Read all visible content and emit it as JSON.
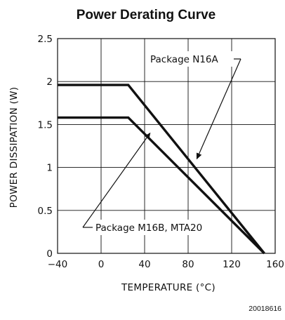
{
  "chart_data": {
    "type": "line",
    "title": "Power Derating Curve",
    "xlabel": "TEMPERATURE (°C)",
    "ylabel": "POWER DISSIPATION (W)",
    "xlim": [
      -40,
      160
    ],
    "ylim": [
      0,
      2.5
    ],
    "x_ticks": [
      "-40",
      "0",
      "40",
      "80",
      "120",
      "160"
    ],
    "y_ticks": [
      "0",
      "0.5",
      "1",
      "1.5",
      "2",
      "2.5"
    ],
    "grid": true,
    "series": [
      {
        "name": "Package N16A",
        "x": [
          -40,
          25,
          150
        ],
        "y": [
          1.96,
          1.96,
          0
        ]
      },
      {
        "name": "Package M16B, MTA20",
        "x": [
          -40,
          25,
          150
        ],
        "y": [
          1.58,
          1.58,
          0
        ]
      }
    ],
    "annotations": [
      {
        "text": "Package N16A",
        "points_to_series": 0,
        "arrow_target": {
          "x": 88,
          "y": 1.1
        }
      },
      {
        "text": "Package M16B, MTA20",
        "points_to_series": 1,
        "arrow_target": {
          "x": 45,
          "y": 1.4
        }
      }
    ],
    "figure_code": "20018616"
  }
}
